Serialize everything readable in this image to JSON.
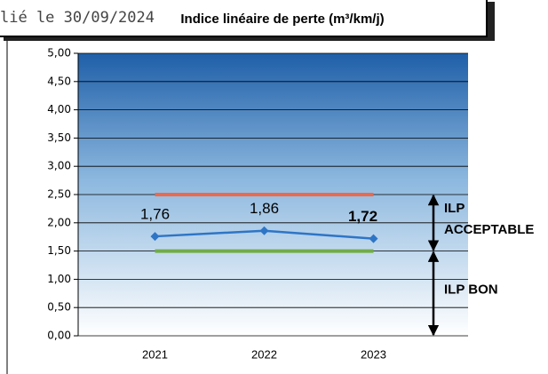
{
  "header": {
    "stamp": "lié le 30/09/2024"
  },
  "chart_data": {
    "type": "line",
    "title": "Indice linéaire de perte (m³/km/j)",
    "categories": [
      "2021",
      "2022",
      "2023"
    ],
    "series": [
      {
        "color": "#2e75c6",
        "values": [
          1.76,
          1.86,
          1.72
        ],
        "value_labels": [
          "1,76",
          "1,86",
          "1,72"
        ]
      }
    ],
    "reference_lines": [
      {
        "value": 2.5,
        "color": "#ec6a4c"
      },
      {
        "value": 1.5,
        "color": "#70ad47"
      }
    ],
    "annotations": [
      {
        "text": [
          "ILP",
          "ACCEPTABLE"
        ],
        "from": 2.5,
        "to": 1.5
      },
      {
        "text": [
          "ILP BON"
        ],
        "from": 1.5,
        "to": 0
      }
    ],
    "ylim": [
      0,
      5
    ],
    "yticks": [
      {
        "value": 0,
        "label": "0,00"
      },
      {
        "value": 0.5,
        "label": "0,50"
      },
      {
        "value": 1,
        "label": "1,00"
      },
      {
        "value": 1.5,
        "label": "1,50"
      },
      {
        "value": 2,
        "label": "2,00"
      },
      {
        "value": 2.5,
        "label": "2,50"
      },
      {
        "value": 3,
        "label": "3,00"
      },
      {
        "value": 3.5,
        "label": "3,50"
      },
      {
        "value": 4,
        "label": "4,00"
      },
      {
        "value": 4.5,
        "label": "4,50"
      },
      {
        "value": 5,
        "label": "5,00"
      }
    ],
    "grid": true
  }
}
